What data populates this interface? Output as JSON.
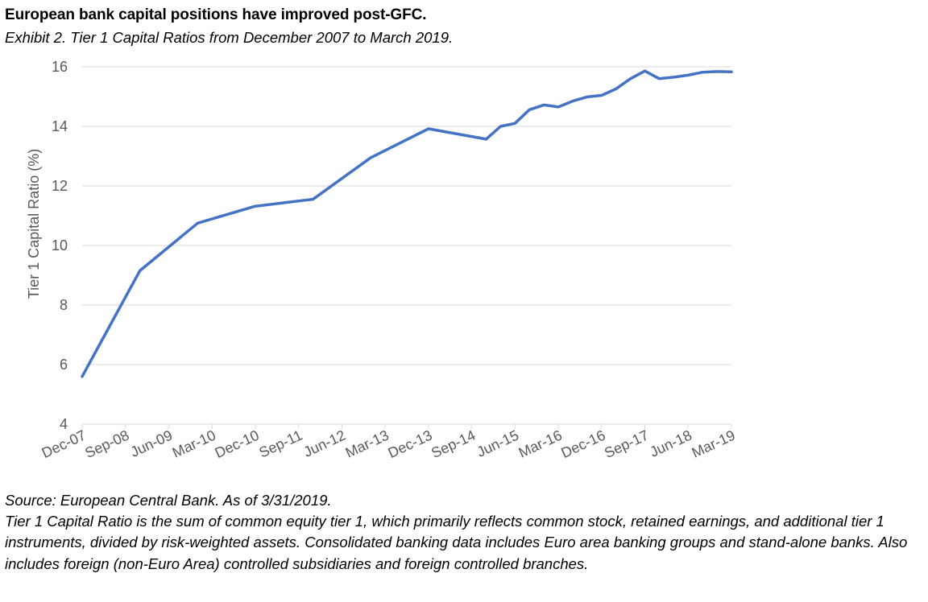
{
  "header": {
    "title": "European bank capital positions have improved post-GFC.",
    "subtitle": "Exhibit 2. Tier 1 Capital Ratios from December 2007 to March 2019."
  },
  "footer": {
    "source": "Source: European Central Bank. As of 3/31/2019.",
    "note": "Tier 1 Capital Ratio is the sum of common equity tier 1, which primarily reflects common stock, retained earnings, and additional tier 1 instruments, divided by risk-weighted assets. Consolidated banking data includes Euro area banking groups and stand-alone banks. Also includes foreign (non-Euro Area) controlled subsidiaries and foreign controlled branches."
  },
  "chart_data": {
    "type": "line",
    "title": "",
    "xlabel": "",
    "ylabel": "Tier 1 Capital Ratio (%)",
    "ylim": [
      4,
      16
    ],
    "yticks": [
      4,
      6,
      8,
      10,
      12,
      14,
      16
    ],
    "xlim": [
      "Dec-07",
      "Mar-19"
    ],
    "xtick_labels": [
      "Dec-07",
      "Sep-08",
      "Jun-09",
      "Mar-10",
      "Dec-10",
      "Sep-11",
      "Jun-12",
      "Mar-13",
      "Dec-13",
      "Sep-14",
      "Jun-15",
      "Mar-16",
      "Dec-16",
      "Sep-17",
      "Jun-18",
      "Mar-19"
    ],
    "grid": true,
    "legend": "none",
    "line_color": "#4472C4",
    "series": [
      {
        "x": [
          "Dec-07",
          "Dec-08",
          "Dec-09",
          "Dec-10",
          "Dec-11",
          "Dec-12",
          "Dec-13",
          "Dec-14",
          "Mar-15",
          "Jun-15",
          "Sep-15",
          "Dec-15",
          "Mar-16",
          "Jun-16",
          "Sep-16",
          "Dec-16",
          "Mar-17",
          "Jun-17",
          "Sep-17",
          "Dec-17",
          "Mar-18",
          "Jun-18",
          "Sep-18",
          "Dec-18",
          "Mar-19"
        ],
        "values": [
          5.6,
          9.15,
          10.75,
          11.32,
          11.55,
          12.95,
          13.92,
          13.57,
          14.0,
          14.1,
          14.56,
          14.72,
          14.65,
          14.85,
          14.99,
          15.04,
          15.26,
          15.6,
          15.86,
          15.6,
          15.65,
          15.72,
          15.82,
          15.84,
          15.83
        ]
      }
    ]
  }
}
